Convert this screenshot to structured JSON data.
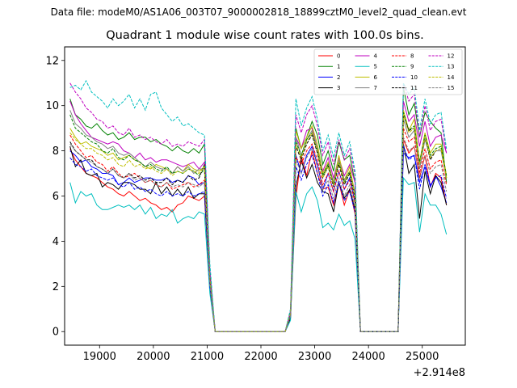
{
  "supertitle": "Data file: modeM0/AS1A06_003T07_9000002818_18899cztM0_level2_quad_clean.evt",
  "chart_data": {
    "type": "line",
    "title": "Quadrant 1 module wise count rates with 100.0s bins.",
    "xlabel": "",
    "ylabel": "",
    "x_offset_label": "+2.914e8",
    "xlim": [
      18350,
      25800
    ],
    "ylim": [
      -0.6,
      12.6
    ],
    "xticks": [
      19000,
      20000,
      21000,
      22000,
      23000,
      24000,
      25000
    ],
    "yticks": [
      0,
      2,
      4,
      6,
      8,
      10,
      12
    ],
    "legend_position": "top-right",
    "x": [
      18450,
      18550,
      18650,
      18750,
      18850,
      18950,
      19050,
      19150,
      19250,
      19350,
      19450,
      19550,
      19650,
      19750,
      19850,
      19950,
      20050,
      20150,
      20250,
      20350,
      20450,
      20550,
      20650,
      20750,
      20850,
      20950,
      21050,
      21150,
      21250,
      21350,
      21450,
      21550,
      21650,
      21750,
      21850,
      21950,
      22050,
      22150,
      22250,
      22350,
      22450,
      22550,
      22650,
      22750,
      22850,
      22950,
      23050,
      23150,
      23250,
      23350,
      23450,
      23550,
      23650,
      23750,
      23850,
      23950,
      24050,
      24150,
      24250,
      24350,
      24450,
      24550,
      24650,
      24750,
      24850,
      24950,
      25050,
      25150,
      25250,
      25350,
      25450
    ],
    "series": [
      {
        "name": "0",
        "color": "#ff0000",
        "dash": "solid",
        "values": [
          8.1,
          7.6,
          7.3,
          7.0,
          6.9,
          6.8,
          6.6,
          6.4,
          6.3,
          6.1,
          6.0,
          6.2,
          6.0,
          5.8,
          5.9,
          5.7,
          5.6,
          5.4,
          5.5,
          5.3,
          5.6,
          5.7,
          6.0,
          5.9,
          5.8,
          6.0,
          2.0,
          0,
          0,
          0,
          0,
          0,
          0,
          0,
          0,
          0,
          0,
          0,
          0,
          0,
          0,
          0.6,
          5.9,
          7.8,
          6.9,
          8.0,
          7.0,
          6.3,
          6.4,
          5.6,
          6.6,
          5.6,
          6.3,
          5.2,
          0,
          0,
          0,
          0,
          0,
          0,
          0,
          0,
          8.5,
          7.9,
          8.2,
          6.8,
          7.8,
          6.4,
          7.0,
          6.8,
          5.6
        ]
      },
      {
        "name": "1",
        "color": "#008000",
        "dash": "solid",
        "values": [
          10.3,
          9.6,
          9.4,
          9.1,
          9.0,
          9.2,
          8.9,
          8.7,
          8.8,
          8.5,
          8.6,
          8.8,
          8.5,
          8.6,
          8.6,
          8.4,
          8.5,
          8.3,
          8.2,
          8.0,
          8.2,
          8.0,
          7.9,
          8.1,
          7.9,
          8.3,
          2.6,
          0,
          0,
          0,
          0,
          0,
          0,
          0,
          0,
          0,
          0,
          0,
          0,
          0,
          0,
          0.9,
          9.0,
          8.1,
          8.6,
          9.3,
          8.7,
          7.4,
          8.0,
          7.1,
          8.4,
          7.6,
          7.8,
          6.6,
          0,
          0,
          0,
          0,
          0,
          0,
          0,
          0,
          10.8,
          9.6,
          10.1,
          8.6,
          9.7,
          9.3,
          9.0,
          8.8,
          6.6
        ]
      },
      {
        "name": "2",
        "color": "#0000ff",
        "dash": "solid",
        "values": [
          8.0,
          7.8,
          7.5,
          7.6,
          7.3,
          7.2,
          7.0,
          7.0,
          6.9,
          6.5,
          6.6,
          6.8,
          6.6,
          6.7,
          6.8,
          6.8,
          6.7,
          6.7,
          6.8,
          6.6,
          6.7,
          6.6,
          6.9,
          6.8,
          6.5,
          6.6,
          2.2,
          0,
          0,
          0,
          0,
          0,
          0,
          0,
          0,
          0,
          0,
          0,
          0,
          0,
          0,
          0.7,
          7.8,
          7.0,
          7.8,
          8.2,
          7.4,
          6.3,
          7.0,
          6.2,
          7.1,
          6.3,
          6.8,
          5.7,
          0,
          0,
          0,
          0,
          0,
          0,
          0,
          0,
          7.9,
          7.7,
          7.8,
          6.6,
          7.3,
          6.4,
          6.9,
          6.4,
          5.7
        ]
      },
      {
        "name": "3",
        "color": "#000000",
        "dash": "solid",
        "values": [
          8.2,
          7.3,
          7.6,
          7.0,
          6.9,
          7.0,
          6.4,
          6.6,
          6.5,
          6.3,
          6.6,
          6.6,
          6.5,
          6.3,
          6.3,
          6.1,
          6.6,
          6.1,
          6.4,
          6.0,
          6.3,
          6.0,
          6.4,
          5.9,
          6.1,
          6.1,
          2.0,
          0,
          0,
          0,
          0,
          0,
          0,
          0,
          0,
          0,
          0,
          0,
          0,
          0,
          0,
          0.6,
          6.4,
          7.6,
          6.8,
          7.4,
          6.6,
          6.2,
          6.1,
          5.3,
          6.6,
          5.9,
          6.3,
          5.4,
          0,
          0,
          0,
          0,
          0,
          0,
          0,
          0,
          8.3,
          7.0,
          7.4,
          5.0,
          7.1,
          6.1,
          6.9,
          6.6,
          5.6
        ]
      },
      {
        "name": "4",
        "color": "#bf00bf",
        "dash": "solid",
        "values": [
          10.2,
          9.6,
          9.2,
          8.9,
          8.6,
          8.5,
          8.4,
          8.3,
          8.4,
          8.3,
          8.0,
          7.9,
          7.7,
          7.9,
          7.6,
          7.7,
          7.5,
          7.6,
          7.6,
          7.5,
          7.4,
          7.3,
          7.4,
          7.5,
          7.2,
          7.5,
          2.4,
          0,
          0,
          0,
          0,
          0,
          0,
          0,
          0,
          0,
          0,
          0,
          0,
          0,
          0,
          0.8,
          8.6,
          8.1,
          8.9,
          9.0,
          8.1,
          7.1,
          7.7,
          6.8,
          7.7,
          6.9,
          7.4,
          6.6,
          0,
          0,
          0,
          0,
          0,
          0,
          0,
          0,
          10.2,
          9.3,
          9.6,
          8.2,
          9.3,
          8.2,
          8.6,
          8.7,
          7.9
        ]
      },
      {
        "name": "5",
        "color": "#00bfbf",
        "dash": "solid",
        "values": [
          6.6,
          5.7,
          6.2,
          6.0,
          6.1,
          5.6,
          5.4,
          5.4,
          5.5,
          5.6,
          5.5,
          5.6,
          5.4,
          5.6,
          5.2,
          5.5,
          5.0,
          5.2,
          5.1,
          5.4,
          4.8,
          5.0,
          5.1,
          5.0,
          5.3,
          5.2,
          1.7,
          0,
          0,
          0,
          0,
          0,
          0,
          0,
          0,
          0,
          0,
          0,
          0,
          0,
          0,
          0.5,
          6.2,
          5.3,
          6.1,
          6.4,
          5.8,
          4.6,
          4.8,
          4.5,
          5.2,
          4.7,
          4.9,
          4.1,
          0,
          0,
          0,
          0,
          0,
          0,
          0,
          0,
          6.8,
          6.5,
          6.6,
          4.4,
          6.1,
          5.6,
          5.6,
          5.2,
          4.3
        ]
      },
      {
        "name": "6",
        "color": "#bfbf00",
        "dash": "solid",
        "values": [
          9.0,
          8.6,
          8.3,
          8.4,
          8.2,
          8.1,
          8.0,
          7.8,
          7.9,
          7.6,
          7.7,
          7.8,
          7.6,
          7.5,
          7.3,
          7.2,
          7.4,
          7.3,
          7.2,
          7.0,
          7.3,
          7.1,
          7.4,
          7.2,
          7.1,
          7.3,
          2.3,
          0,
          0,
          0,
          0,
          0,
          0,
          0,
          0,
          0,
          0,
          0,
          0,
          0,
          0,
          0.8,
          8.9,
          8.1,
          8.6,
          9.1,
          8.3,
          7.0,
          7.5,
          6.6,
          7.8,
          6.7,
          7.3,
          6.1,
          0,
          0,
          0,
          0,
          0,
          0,
          0,
          0,
          9.8,
          8.9,
          9.4,
          7.5,
          8.8,
          7.9,
          8.3,
          8.3,
          6.9
        ]
      },
      {
        "name": "7",
        "color": "#808080",
        "dash": "solid",
        "values": [
          9.8,
          9.2,
          9.0,
          8.7,
          8.6,
          8.4,
          8.3,
          8.1,
          8.2,
          7.9,
          7.8,
          7.9,
          7.7,
          7.5,
          7.3,
          7.5,
          7.3,
          7.2,
          7.2,
          7.0,
          7.3,
          7.1,
          7.3,
          7.0,
          7.2,
          7.2,
          2.3,
          0,
          0,
          0,
          0,
          0,
          0,
          0,
          0,
          0,
          0,
          0,
          0,
          0,
          0,
          0.8,
          8.6,
          7.8,
          8.5,
          8.9,
          8.1,
          6.9,
          7.4,
          6.6,
          7.6,
          6.7,
          7.1,
          6.1,
          0,
          0,
          0,
          0,
          0,
          0,
          0,
          0,
          9.4,
          8.6,
          8.9,
          7.2,
          8.5,
          7.7,
          8.0,
          8.0,
          6.8
        ]
      },
      {
        "name": "8",
        "color": "#ff0000",
        "dash": "dashed",
        "values": [
          8.7,
          8.3,
          8.0,
          7.7,
          7.8,
          7.5,
          7.4,
          7.1,
          7.3,
          7.0,
          6.8,
          6.9,
          7.0,
          6.8,
          6.6,
          6.7,
          6.5,
          6.4,
          6.6,
          6.3,
          6.4,
          6.5,
          6.6,
          6.4,
          6.5,
          6.7,
          2.1,
          0,
          0,
          0,
          0,
          0,
          0,
          0,
          0,
          0,
          0,
          0,
          0,
          0,
          0,
          0.7,
          7.7,
          7.4,
          8.0,
          8.3,
          7.6,
          6.5,
          7.0,
          6.2,
          7.1,
          6.3,
          6.7,
          5.7,
          0,
          0,
          0,
          0,
          0,
          0,
          0,
          0,
          9.0,
          8.4,
          8.6,
          7.0,
          8.1,
          7.2,
          7.5,
          7.6,
          6.5
        ]
      },
      {
        "name": "9",
        "color": "#008000",
        "dash": "dashed",
        "values": [
          9.6,
          9.0,
          8.8,
          8.6,
          8.4,
          8.3,
          8.0,
          7.9,
          8.1,
          7.7,
          7.6,
          7.8,
          7.6,
          7.5,
          7.3,
          7.4,
          7.2,
          7.1,
          7.3,
          7.0,
          7.1,
          7.0,
          7.2,
          7.1,
          6.9,
          7.2,
          2.3,
          0,
          0,
          0,
          0,
          0,
          0,
          0,
          0,
          0,
          0,
          0,
          0,
          0,
          0,
          0.8,
          8.4,
          7.8,
          8.5,
          8.8,
          8.0,
          6.9,
          7.4,
          6.5,
          7.5,
          6.6,
          7.1,
          6.0,
          0,
          0,
          0,
          0,
          0,
          0,
          0,
          0,
          9.7,
          8.9,
          9.1,
          7.5,
          8.7,
          7.8,
          8.1,
          8.2,
          6.9
        ]
      },
      {
        "name": "10",
        "color": "#0000ff",
        "dash": "dashed",
        "values": [
          7.7,
          7.4,
          7.3,
          7.1,
          7.2,
          6.9,
          6.8,
          6.7,
          6.8,
          6.5,
          6.4,
          6.6,
          6.3,
          6.4,
          6.2,
          6.3,
          6.1,
          6.0,
          6.2,
          6.0,
          6.1,
          6.0,
          6.2,
          6.0,
          6.1,
          6.2,
          2.0,
          0,
          0,
          0,
          0,
          0,
          0,
          0,
          0,
          0,
          0,
          0,
          0,
          0,
          0,
          0.7,
          7.3,
          6.7,
          7.4,
          7.8,
          7.0,
          6.0,
          6.5,
          5.7,
          6.6,
          5.8,
          6.2,
          5.3,
          0,
          0,
          0,
          0,
          0,
          0,
          0,
          0,
          8.2,
          7.6,
          7.8,
          6.3,
          7.4,
          6.5,
          6.8,
          6.9,
          5.9
        ]
      },
      {
        "name": "11",
        "color": "#000000",
        "dash": "dashed",
        "values": [
          8.4,
          8.0,
          7.8,
          7.6,
          7.6,
          7.3,
          7.2,
          7.0,
          7.2,
          6.9,
          6.8,
          7.0,
          6.8,
          6.9,
          6.7,
          6.8,
          6.6,
          6.6,
          6.8,
          6.5,
          6.7,
          6.6,
          6.9,
          6.7,
          6.8,
          7.4,
          2.3,
          0,
          0,
          0,
          0,
          0,
          0,
          0,
          0,
          0,
          0,
          0,
          0,
          0,
          0,
          0.8,
          8.2,
          7.6,
          8.3,
          8.7,
          7.9,
          6.8,
          7.3,
          6.4,
          7.4,
          6.5,
          7.0,
          5.9,
          0,
          0,
          0,
          0,
          0,
          0,
          0,
          0,
          9.6,
          8.9,
          9.0,
          7.4,
          8.6,
          7.6,
          8.0,
          8.1,
          6.8
        ]
      },
      {
        "name": "12",
        "color": "#bf00bf",
        "dash": "dashed",
        "values": [
          11.0,
          10.6,
          10.3,
          9.9,
          9.7,
          9.4,
          9.3,
          9.0,
          9.1,
          8.8,
          8.7,
          9.0,
          8.6,
          8.7,
          8.5,
          8.6,
          8.4,
          8.3,
          8.5,
          8.2,
          8.3,
          8.2,
          8.4,
          8.3,
          8.2,
          8.5,
          2.7,
          0,
          0,
          0,
          0,
          0,
          0,
          0,
          0,
          0,
          0,
          0,
          0,
          0,
          0,
          0.9,
          9.6,
          8.8,
          9.6,
          10.0,
          9.1,
          7.8,
          8.4,
          7.4,
          8.5,
          7.6,
          8.1,
          6.9,
          0,
          0,
          0,
          0,
          0,
          0,
          0,
          0,
          11.0,
          10.2,
          10.5,
          8.6,
          10.0,
          8.9,
          9.3,
          9.4,
          7.9
        ]
      },
      {
        "name": "13",
        "color": "#00bfbf",
        "dash": "dashed",
        "values": [
          10.8,
          10.9,
          10.7,
          11.1,
          10.6,
          10.4,
          10.2,
          9.9,
          10.3,
          10.0,
          10.2,
          10.5,
          9.9,
          10.3,
          9.8,
          10.5,
          10.6,
          9.9,
          9.6,
          9.3,
          9.5,
          9.1,
          9.2,
          9.0,
          8.8,
          8.7,
          3.0,
          0,
          0,
          0,
          0,
          0,
          0,
          0,
          0,
          0,
          0,
          0,
          0,
          0,
          0,
          1.0,
          10.3,
          9.1,
          9.9,
          10.4,
          9.4,
          8.0,
          8.7,
          7.7,
          8.8,
          7.8,
          8.4,
          7.1,
          0,
          0,
          0,
          0,
          0,
          0,
          0,
          0,
          11.0,
          10.5,
          10.8,
          8.9,
          10.3,
          9.2,
          9.6,
          9.7,
          8.1
        ]
      },
      {
        "name": "14",
        "color": "#bfbf00",
        "dash": "dashed",
        "values": [
          8.8,
          8.5,
          8.3,
          8.1,
          8.1,
          7.9,
          7.8,
          7.6,
          7.7,
          7.4,
          7.3,
          7.6,
          7.3,
          7.4,
          7.2,
          7.3,
          7.1,
          7.0,
          7.2,
          6.9,
          7.1,
          7.0,
          7.2,
          7.1,
          7.0,
          7.3,
          2.3,
          0,
          0,
          0,
          0,
          0,
          0,
          0,
          0,
          0,
          0,
          0,
          0,
          0,
          0,
          0.8,
          8.3,
          7.7,
          8.4,
          8.8,
          8.0,
          6.8,
          7.3,
          6.5,
          7.5,
          6.6,
          7.1,
          6.0,
          0,
          0,
          0,
          0,
          0,
          0,
          0,
          0,
          9.6,
          8.8,
          9.0,
          7.4,
          8.6,
          7.7,
          8.0,
          8.1,
          6.8
        ]
      },
      {
        "name": "15",
        "color": "#808080",
        "dash": "dashed",
        "values": [
          8.3,
          8.0,
          7.8,
          7.6,
          7.5,
          7.3,
          7.2,
          7.0,
          7.2,
          6.9,
          6.8,
          7.0,
          6.7,
          6.8,
          6.6,
          6.7,
          6.5,
          6.4,
          6.6,
          6.4,
          6.5,
          6.4,
          6.6,
          6.5,
          6.4,
          6.6,
          2.1,
          0,
          0,
          0,
          0,
          0,
          0,
          0,
          0,
          0,
          0,
          0,
          0,
          0,
          0,
          0.7,
          7.6,
          7.0,
          7.7,
          8.1,
          7.3,
          6.3,
          6.7,
          5.9,
          6.8,
          6.0,
          6.5,
          5.5,
          0,
          0,
          0,
          0,
          0,
          0,
          0,
          0,
          8.6,
          8.0,
          8.2,
          6.7,
          7.8,
          7.0,
          7.3,
          7.4,
          6.2
        ]
      }
    ]
  }
}
